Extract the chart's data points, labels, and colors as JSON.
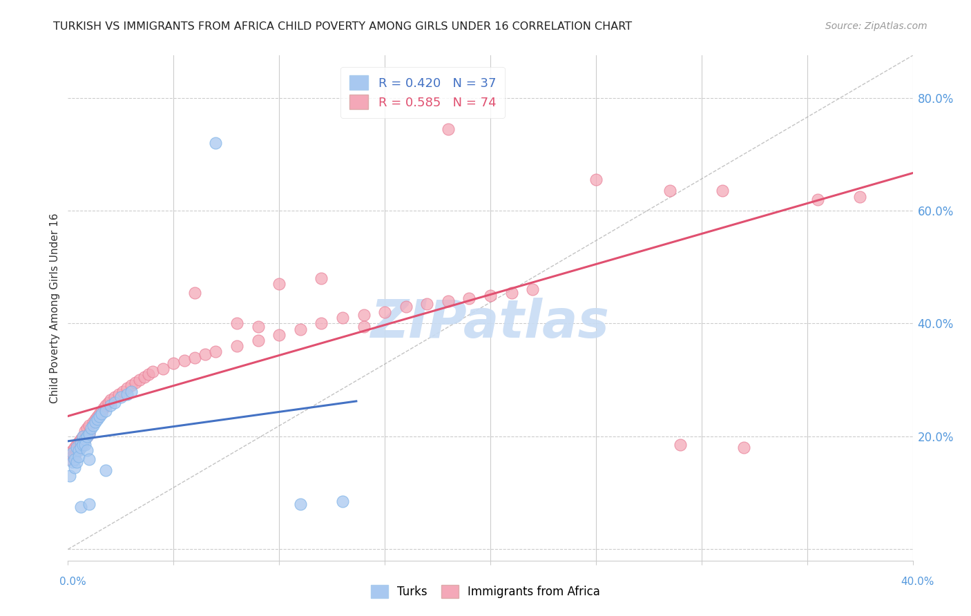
{
  "title": "TURKISH VS IMMIGRANTS FROM AFRICA CHILD POVERTY AMONG GIRLS UNDER 16 CORRELATION CHART",
  "source": "Source: ZipAtlas.com",
  "ylabel": "Child Poverty Among Girls Under 16",
  "xlim": [
    0.0,
    0.4
  ],
  "ylim": [
    -0.02,
    0.875
  ],
  "yticks": [
    0.0,
    0.2,
    0.4,
    0.6,
    0.8
  ],
  "ytick_labels": [
    "",
    "20.0%",
    "40.0%",
    "60.0%",
    "80.0%"
  ],
  "xtick_left": "0.0%",
  "xtick_right": "40.0%",
  "legend_blue_r": "R = 0.420",
  "legend_blue_n": "N = 37",
  "legend_pink_r": "R = 0.585",
  "legend_pink_n": "N = 74",
  "blue_color": "#A8C8F0",
  "pink_color": "#F4A8B8",
  "blue_edge_color": "#7EB3E8",
  "pink_edge_color": "#E88098",
  "blue_line_color": "#4472C4",
  "pink_line_color": "#E05070",
  "blue_scatter": [
    [
      0.001,
      0.13
    ],
    [
      0.002,
      0.155
    ],
    [
      0.002,
      0.17
    ],
    [
      0.003,
      0.145
    ],
    [
      0.003,
      0.16
    ],
    [
      0.004,
      0.18
    ],
    [
      0.004,
      0.155
    ],
    [
      0.005,
      0.175
    ],
    [
      0.005,
      0.165
    ],
    [
      0.006,
      0.19
    ],
    [
      0.006,
      0.18
    ],
    [
      0.007,
      0.2
    ],
    [
      0.007,
      0.185
    ],
    [
      0.008,
      0.195
    ],
    [
      0.008,
      0.185
    ],
    [
      0.009,
      0.2
    ],
    [
      0.009,
      0.175
    ],
    [
      0.01,
      0.205
    ],
    [
      0.01,
      0.16
    ],
    [
      0.011,
      0.215
    ],
    [
      0.012,
      0.22
    ],
    [
      0.013,
      0.225
    ],
    [
      0.014,
      0.23
    ],
    [
      0.015,
      0.235
    ],
    [
      0.016,
      0.24
    ],
    [
      0.018,
      0.245
    ],
    [
      0.02,
      0.255
    ],
    [
      0.022,
      0.26
    ],
    [
      0.025,
      0.27
    ],
    [
      0.028,
      0.275
    ],
    [
      0.03,
      0.28
    ],
    [
      0.006,
      0.075
    ],
    [
      0.01,
      0.08
    ],
    [
      0.018,
      0.14
    ],
    [
      0.07,
      0.72
    ],
    [
      0.11,
      0.08
    ],
    [
      0.13,
      0.085
    ]
  ],
  "pink_scatter": [
    [
      0.001,
      0.17
    ],
    [
      0.001,
      0.16
    ],
    [
      0.002,
      0.175
    ],
    [
      0.002,
      0.165
    ],
    [
      0.003,
      0.18
    ],
    [
      0.003,
      0.165
    ],
    [
      0.004,
      0.185
    ],
    [
      0.004,
      0.175
    ],
    [
      0.005,
      0.19
    ],
    [
      0.005,
      0.18
    ],
    [
      0.006,
      0.195
    ],
    [
      0.006,
      0.185
    ],
    [
      0.007,
      0.2
    ],
    [
      0.007,
      0.19
    ],
    [
      0.008,
      0.21
    ],
    [
      0.008,
      0.195
    ],
    [
      0.009,
      0.215
    ],
    [
      0.009,
      0.2
    ],
    [
      0.01,
      0.22
    ],
    [
      0.01,
      0.205
    ],
    [
      0.012,
      0.225
    ],
    [
      0.013,
      0.23
    ],
    [
      0.014,
      0.235
    ],
    [
      0.015,
      0.24
    ],
    [
      0.016,
      0.245
    ],
    [
      0.017,
      0.25
    ],
    [
      0.018,
      0.255
    ],
    [
      0.019,
      0.26
    ],
    [
      0.02,
      0.265
    ],
    [
      0.022,
      0.27
    ],
    [
      0.024,
      0.275
    ],
    [
      0.026,
      0.28
    ],
    [
      0.028,
      0.285
    ],
    [
      0.03,
      0.29
    ],
    [
      0.032,
      0.295
    ],
    [
      0.034,
      0.3
    ],
    [
      0.036,
      0.305
    ],
    [
      0.038,
      0.31
    ],
    [
      0.04,
      0.315
    ],
    [
      0.045,
      0.32
    ],
    [
      0.05,
      0.33
    ],
    [
      0.055,
      0.335
    ],
    [
      0.06,
      0.34
    ],
    [
      0.065,
      0.345
    ],
    [
      0.07,
      0.35
    ],
    [
      0.08,
      0.36
    ],
    [
      0.09,
      0.37
    ],
    [
      0.1,
      0.38
    ],
    [
      0.11,
      0.39
    ],
    [
      0.12,
      0.4
    ],
    [
      0.13,
      0.41
    ],
    [
      0.14,
      0.415
    ],
    [
      0.15,
      0.42
    ],
    [
      0.16,
      0.43
    ],
    [
      0.17,
      0.435
    ],
    [
      0.18,
      0.44
    ],
    [
      0.19,
      0.445
    ],
    [
      0.2,
      0.45
    ],
    [
      0.21,
      0.455
    ],
    [
      0.22,
      0.46
    ],
    [
      0.1,
      0.47
    ],
    [
      0.12,
      0.48
    ],
    [
      0.14,
      0.395
    ],
    [
      0.06,
      0.455
    ],
    [
      0.08,
      0.4
    ],
    [
      0.09,
      0.395
    ],
    [
      0.18,
      0.745
    ],
    [
      0.25,
      0.655
    ],
    [
      0.31,
      0.635
    ],
    [
      0.285,
      0.635
    ],
    [
      0.355,
      0.62
    ],
    [
      0.375,
      0.625
    ],
    [
      0.29,
      0.185
    ],
    [
      0.32,
      0.18
    ]
  ],
  "watermark": "ZIPatlas",
  "watermark_color": "#C8DCF4",
  "background_color": "#FFFFFF",
  "grid_color": "#E8E8E8",
  "grid_style": "--"
}
